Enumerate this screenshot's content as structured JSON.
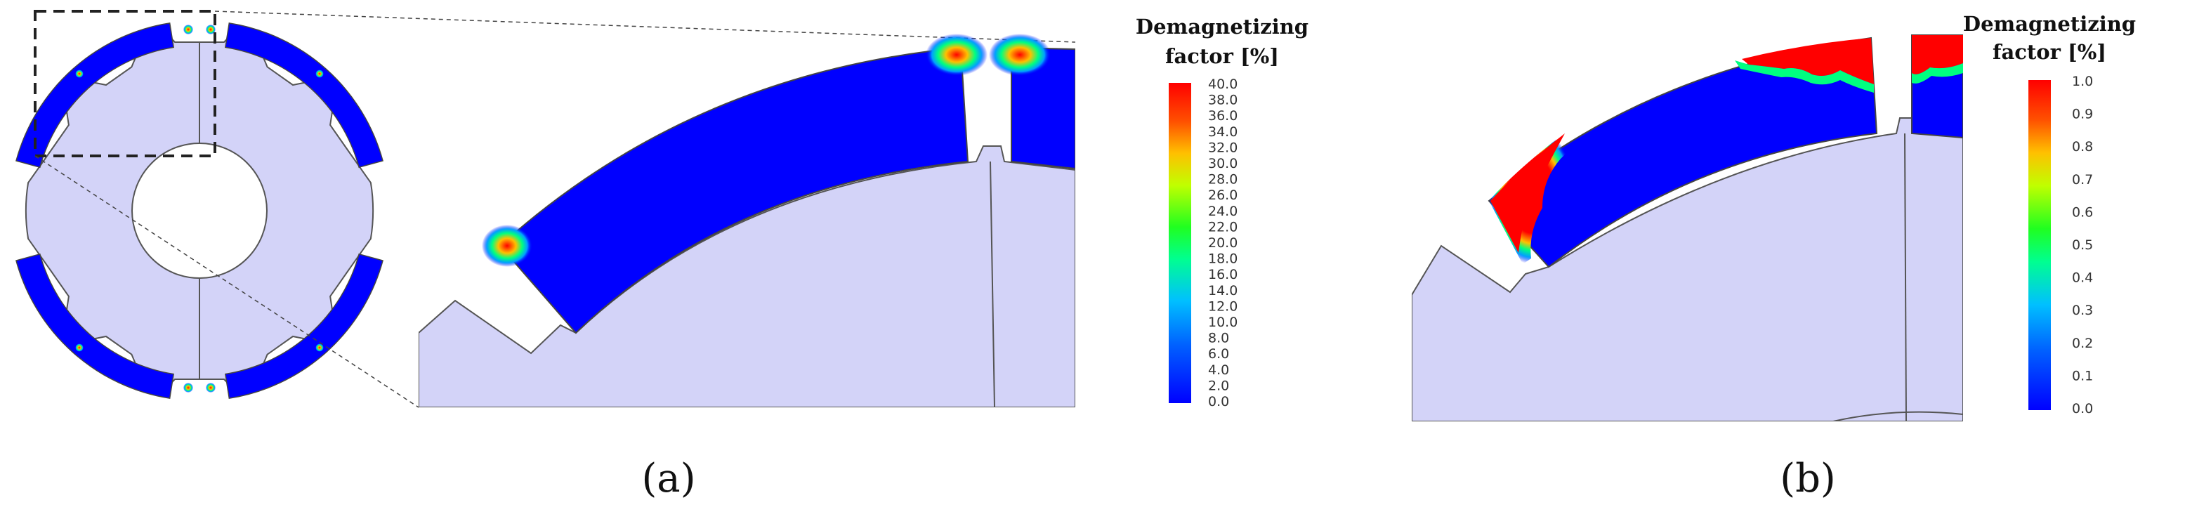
{
  "legend_a": {
    "title_line1": "Demagnetizing",
    "title_line2": "factor [%]",
    "ticks": [
      "40.0",
      "38.0",
      "36.0",
      "34.0",
      "32.0",
      "30.0",
      "28.0",
      "26.0",
      "24.0",
      "22.0",
      "20.0",
      "18.0",
      "16.0",
      "14.0",
      "12.0",
      "10.0",
      "8.0",
      "6.0",
      "4.0",
      "2.0",
      "0.0"
    ]
  },
  "legend_b": {
    "title_line1": "Demagnetizing",
    "title_line2": "factor [%]",
    "ticks": [
      "1.0",
      "0.9",
      "0.8",
      "0.7",
      "0.6",
      "0.5",
      "0.4",
      "0.3",
      "0.2",
      "0.1",
      "0.0"
    ]
  },
  "colorscale": [
    "#0000ff",
    "#0080ff",
    "#00c8ff",
    "#00ff80",
    "#80ff00",
    "#ffff00",
    "#ffa000",
    "#ff0000"
  ],
  "colors": {
    "rotor": "#d3d3f8",
    "magnet": "#0000ff",
    "hot": "#ff0000",
    "outline": "#555555"
  },
  "labels": {
    "a": "(a)",
    "b": "(b)"
  }
}
